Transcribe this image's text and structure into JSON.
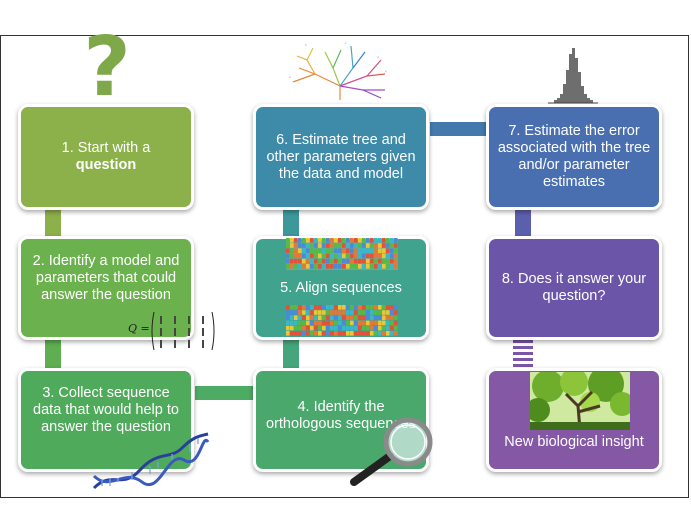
{
  "steps": {
    "s1": {
      "line1": "1. Start with a",
      "line2": "question"
    },
    "s2": "2. Identify a model and parameters that could answer the question",
    "s3": "3. Collect sequence data that would help to answer the question",
    "s4": "4. Identify the orthologous sequences",
    "s5": "5. Align sequences",
    "s6": "6. Estimate tree and other parameters given the data and model",
    "s7": "7. Estimate the error associated with the tree and/or parameter estimates",
    "s8": "8. Does it answer your question?",
    "s9": "New biological insight"
  },
  "question_mark": "?",
  "matrix_label": "Q =",
  "colors": {
    "s1": "#8cb04a",
    "s2": "#6bb24e",
    "s3": "#4fab5b",
    "s4": "#4aa86c",
    "s5": "#3fa38e",
    "s6": "#3d8ba8",
    "s7": "#4a6fb0",
    "s8": "#6a55a8",
    "s9": "#8558a6"
  },
  "icons": [
    "question-mark-icon",
    "phylogenetic-tree-icon",
    "histogram-icon",
    "matrix-icon",
    "dna-helix-icon",
    "magnifying-glass-icon",
    "alignment-icon",
    "tree-photo-icon"
  ]
}
